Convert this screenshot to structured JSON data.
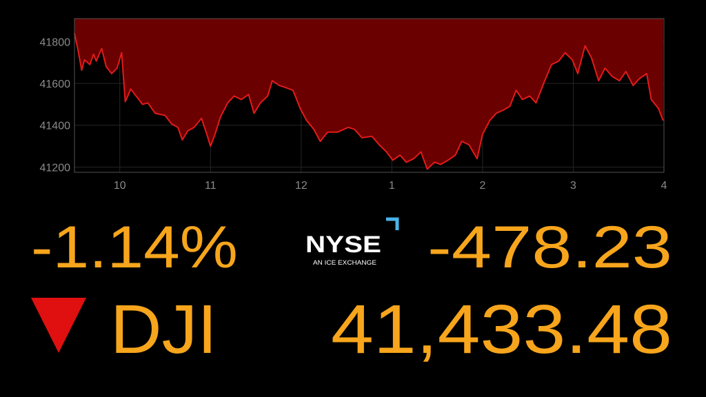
{
  "chart_data": {
    "type": "area",
    "x": [
      9.5,
      9.54,
      9.58,
      9.61,
      9.67,
      9.71,
      9.74,
      9.8,
      9.85,
      9.91,
      9.97,
      10.02,
      10.06,
      10.12,
      10.18,
      10.25,
      10.31,
      10.39,
      10.5,
      10.57,
      10.64,
      10.69,
      10.75,
      10.82,
      10.9,
      10.96,
      11.0,
      11.05,
      11.11,
      11.19,
      11.26,
      11.34,
      11.42,
      11.48,
      11.55,
      11.63,
      11.68,
      11.76,
      11.83,
      11.91,
      11.99,
      12.06,
      12.14,
      12.21,
      12.29,
      12.4,
      12.52,
      12.59,
      12.67,
      12.78,
      12.86,
      12.94,
      13.01,
      13.09,
      13.16,
      13.24,
      13.32,
      13.39,
      13.47,
      13.54,
      13.62,
      13.7,
      13.77,
      13.85,
      13.94,
      14.0,
      14.08,
      14.15,
      14.23,
      14.3,
      14.37,
      14.44,
      14.52,
      14.59,
      14.68,
      14.76,
      14.84,
      14.91,
      14.99,
      15.05,
      15.13,
      15.2,
      15.28,
      15.35,
      15.43,
      15.51,
      15.58,
      15.66,
      15.73,
      15.81,
      15.86,
      15.94,
      15.99
    ],
    "values": [
      41840,
      41757,
      41663,
      41713,
      41690,
      41740,
      41707,
      41767,
      41680,
      41647,
      41673,
      41747,
      41513,
      41573,
      41540,
      41500,
      41507,
      41457,
      41447,
      41407,
      41390,
      41330,
      41373,
      41390,
      41433,
      41357,
      41300,
      41357,
      41440,
      41507,
      41540,
      41523,
      41547,
      41457,
      41507,
      41540,
      41613,
      41590,
      41580,
      41567,
      41480,
      41423,
      41380,
      41323,
      41367,
      41367,
      41390,
      41380,
      41340,
      41347,
      41307,
      41273,
      41233,
      41257,
      41223,
      41240,
      41273,
      41190,
      41223,
      41213,
      41233,
      41257,
      41323,
      41307,
      41240,
      41357,
      41423,
      41457,
      41473,
      41490,
      41567,
      41523,
      41540,
      41507,
      41607,
      41690,
      41707,
      41747,
      41713,
      41647,
      41780,
      41723,
      41613,
      41673,
      41633,
      41613,
      41657,
      41590,
      41623,
      41647,
      41523,
      41480,
      41423
    ],
    "color": "#e31b1b",
    "fill": "#6b0000",
    "xlim": [
      9.5,
      16
    ],
    "ylim": [
      41175,
      41910
    ],
    "xticks": [
      10,
      11,
      12,
      {
        "value": 13,
        "label": "1"
      },
      {
        "value": 14,
        "label": "2"
      },
      {
        "value": 15,
        "label": "3"
      },
      {
        "value": 16,
        "label": "4"
      }
    ],
    "yticks": [
      41200,
      41400,
      41600,
      41800
    ],
    "grid": true
  },
  "quote": {
    "percent_change": "-1.14%",
    "point_change": "-478.23",
    "symbol": "DJI",
    "price": "41,433.48"
  },
  "logo": {
    "name": "NYSE",
    "tagline": "AN ICE EXCHANGE"
  }
}
